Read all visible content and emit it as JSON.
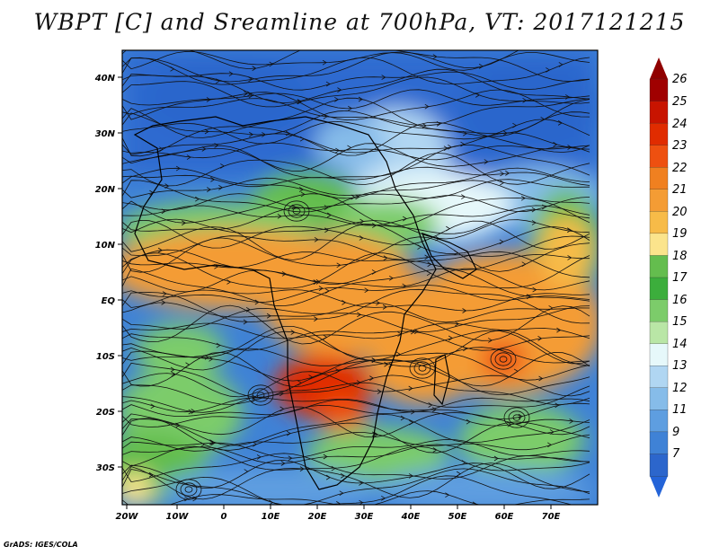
{
  "title": "WBPT [C] and Sreamline at 700hPa, VT: 2017121215",
  "credit": "GrADS: IGES/COLA",
  "map": {
    "lon_ticks": [
      "20W",
      "10W",
      "0",
      "10E",
      "20E",
      "30E",
      "40E",
      "50E",
      "60E",
      "70E"
    ],
    "lat_ticks": [
      "40N",
      "30N",
      "20N",
      "10N",
      "EQ",
      "10S",
      "20S",
      "30S"
    ],
    "variable": "wet-bulb potential temperature",
    "units": "C",
    "level": "700hPa",
    "valid_time": "2017121215"
  },
  "colorbar": {
    "labels": [
      "26",
      "25",
      "24",
      "23",
      "22",
      "21",
      "20",
      "19",
      "18",
      "17",
      "16",
      "15",
      "14",
      "13",
      "12",
      "11",
      "9",
      "7"
    ],
    "colors": [
      "#a00000",
      "#c81400",
      "#e02c00",
      "#ee5010",
      "#f08020",
      "#f49c34",
      "#f7bb48",
      "#fbe48c",
      "#64bd4e",
      "#3cae3c",
      "#7ccc6a",
      "#b9e6a6",
      "#e6f8fa",
      "#b0d6f2",
      "#86bce9",
      "#5e9ee0",
      "#3f82d6",
      "#2c66cc"
    ],
    "top_arrow_color": "#900000",
    "bottom_arrow_color": "#2464d8"
  }
}
